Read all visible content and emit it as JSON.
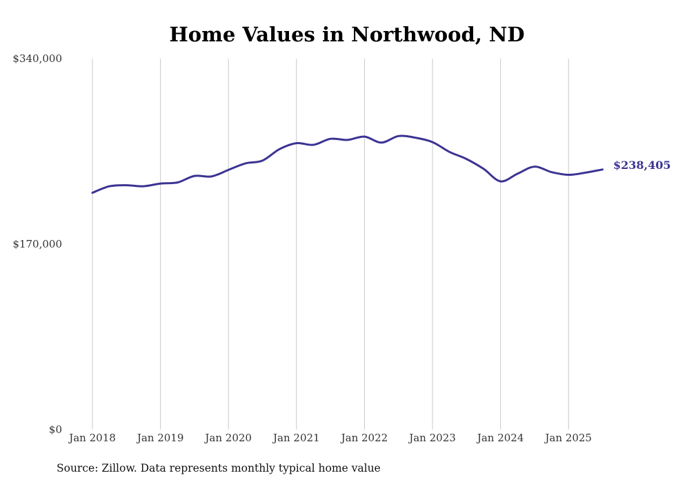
{
  "chart_data": {
    "type": "line",
    "title": "Home Values in Northwood, ND",
    "source": "Source: Zillow. Data represents monthly typical home value",
    "xlabel": "",
    "ylabel": "",
    "ylim": [
      0,
      340000
    ],
    "y_ticks": [
      "$0",
      "$170,000",
      "$340,000"
    ],
    "x_ticks": [
      "Jan 2018",
      "Jan 2019",
      "Jan 2020",
      "Jan 2021",
      "Jan 2022",
      "Jan 2023",
      "Jan 2024",
      "Jan 2025"
    ],
    "grid": {
      "vertical": true,
      "horizontal": false
    },
    "colors": {
      "line": "#3b3393",
      "grid": "#c9c9c9"
    },
    "end_label": "$238,405",
    "series": [
      {
        "values": [
          [
            2018.0,
            217000
          ],
          [
            2018.25,
            223000
          ],
          [
            2018.5,
            224000
          ],
          [
            2018.75,
            223000
          ],
          [
            2019.0,
            225500
          ],
          [
            2019.25,
            226500
          ],
          [
            2019.5,
            232500
          ],
          [
            2019.75,
            232000
          ],
          [
            2020.0,
            238000
          ],
          [
            2020.25,
            244000
          ],
          [
            2020.5,
            246500
          ],
          [
            2020.75,
            257000
          ],
          [
            2021.0,
            262500
          ],
          [
            2021.25,
            261000
          ],
          [
            2021.5,
            266500
          ],
          [
            2021.75,
            265500
          ],
          [
            2022.0,
            268500
          ],
          [
            2022.25,
            263000
          ],
          [
            2022.5,
            269000
          ],
          [
            2022.75,
            267500
          ],
          [
            2023.0,
            263500
          ],
          [
            2023.25,
            254500
          ],
          [
            2023.5,
            248000
          ],
          [
            2023.75,
            239000
          ],
          [
            2024.0,
            227500
          ],
          [
            2024.25,
            234500
          ],
          [
            2024.5,
            241000
          ],
          [
            2024.75,
            236000
          ],
          [
            2025.0,
            233500
          ],
          [
            2025.25,
            235500
          ],
          [
            2025.5,
            238405
          ]
        ]
      }
    ]
  }
}
